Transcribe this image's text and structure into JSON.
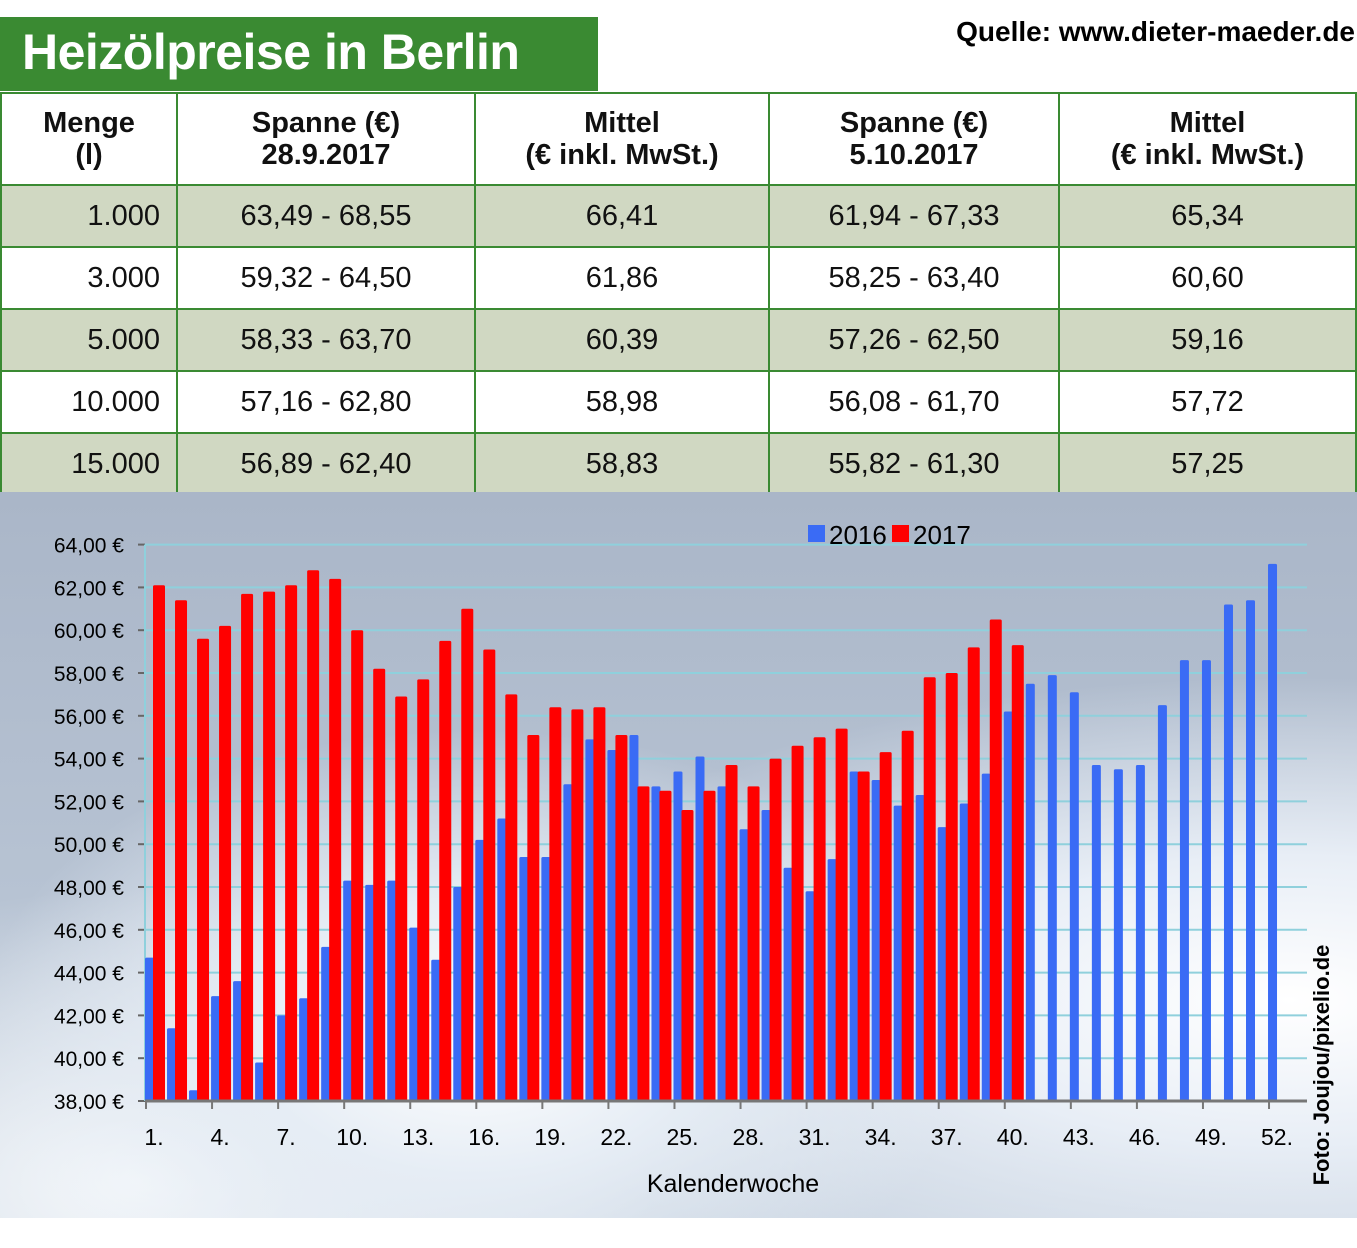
{
  "title": "Heizölpreise in Berlin",
  "source": "Quelle: www.dieter-maeder.de",
  "table": {
    "headers": [
      [
        "Menge",
        "(l)"
      ],
      [
        "Spanne (€)",
        "28.9.2017"
      ],
      [
        "Mittel",
        "(€ inkl. MwSt.)"
      ],
      [
        "Spanne (€)",
        "5.10.2017"
      ],
      [
        "Mittel",
        "(€ inkl. MwSt.)"
      ]
    ],
    "rows": [
      [
        "1.000",
        "63,49 - 68,55",
        "66,41",
        "61,94 - 67,33",
        "65,34"
      ],
      [
        "3.000",
        "59,32 - 64,50",
        "61,86",
        "58,25 - 63,40",
        "60,60"
      ],
      [
        "5.000",
        "58,33 - 63,70",
        "60,39",
        "57,26 - 62,50",
        "59,16"
      ],
      [
        "10.000",
        "57,16 - 62,80",
        "58,98",
        "56,08 - 61,70",
        "57,72"
      ],
      [
        "15.000",
        "56,89 - 62,40",
        "58,83",
        "55,82 - 61,30",
        "57,25"
      ]
    ]
  },
  "colors": {
    "brand_green": "#3a8a32",
    "row_shade": "#d0d8c2",
    "series_2016": "#3a6bf5",
    "series_2017": "#ff0000",
    "grid": "#8fd0dc"
  },
  "photo_credit": "Foto: Joujou/pixelio.de",
  "chart_data": {
    "type": "bar",
    "xlabel": "Kalenderwoche",
    "ylabel": "",
    "ylim": [
      38,
      64
    ],
    "grid": true,
    "legend_position": "top-center",
    "y_ticks": [
      "38,00 €",
      "40,00 €",
      "42,00 €",
      "44,00 €",
      "46,00 €",
      "48,00 €",
      "50,00 €",
      "52,00 €",
      "54,00 €",
      "56,00 €",
      "58,00 €",
      "60,00 €",
      "62,00 €",
      "64,00 €"
    ],
    "x_tick_labels": [
      "1.",
      "4.",
      "7.",
      "10.",
      "13.",
      "16.",
      "19.",
      "22.",
      "25.",
      "28.",
      "31.",
      "34.",
      "37.",
      "40.",
      "43.",
      "46.",
      "49.",
      "52."
    ],
    "weeks": [
      1,
      2,
      3,
      4,
      5,
      6,
      7,
      8,
      9,
      10,
      11,
      12,
      13,
      14,
      15,
      16,
      17,
      18,
      19,
      20,
      21,
      22,
      23,
      24,
      25,
      26,
      27,
      28,
      29,
      30,
      31,
      32,
      33,
      34,
      35,
      36,
      37,
      38,
      39,
      40,
      41,
      42,
      43,
      44,
      45,
      46,
      47,
      48,
      49,
      50,
      51,
      52
    ],
    "series": [
      {
        "name": "2016",
        "values": [
          44.7,
          41.4,
          38.5,
          42.9,
          43.6,
          39.8,
          42.0,
          42.8,
          45.2,
          48.3,
          48.1,
          48.3,
          46.1,
          44.6,
          48.0,
          50.2,
          51.2,
          49.4,
          49.4,
          52.8,
          54.9,
          54.4,
          55.1,
          52.7,
          53.4,
          54.1,
          52.7,
          50.7,
          51.6,
          48.9,
          47.8,
          49.3,
          53.4,
          53.0,
          51.8,
          52.3,
          50.8,
          51.9,
          53.3,
          56.2,
          57.5,
          57.9,
          57.1,
          53.7,
          53.5,
          53.7,
          56.5,
          58.6,
          58.6,
          61.2,
          61.4,
          63.1
        ]
      },
      {
        "name": "2017",
        "values": [
          62.1,
          61.4,
          59.6,
          60.2,
          61.7,
          61.8,
          62.1,
          62.8,
          62.4,
          60.0,
          58.2,
          56.9,
          57.7,
          59.5,
          61.0,
          59.1,
          57.0,
          55.1,
          56.4,
          56.3,
          56.4,
          55.1,
          52.7,
          52.5,
          51.6,
          52.5,
          53.7,
          52.7,
          54.0,
          54.6,
          55.0,
          55.4,
          53.4,
          54.3,
          55.3,
          57.8,
          58.0,
          59.2,
          60.5,
          59.3
        ]
      }
    ]
  }
}
